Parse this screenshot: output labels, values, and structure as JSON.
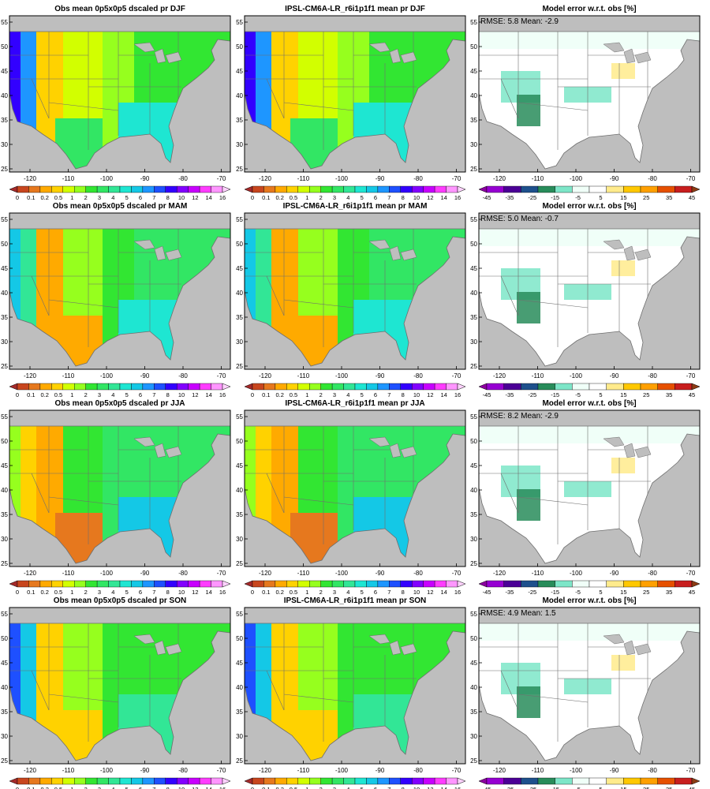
{
  "figure": {
    "lon_ticks": [
      "-120",
      "-110",
      "-100",
      "-90",
      "-80",
      "-70"
    ],
    "lat_ticks": [
      "25",
      "30",
      "35",
      "40",
      "45",
      "50",
      "55"
    ],
    "rows": [
      {
        "season": "DJF",
        "panels": [
          {
            "title": "Obs mean 0p5x0p5 dscaled pr DJF",
            "kind": "precip"
          },
          {
            "title": "IPSL-CM6A-LR_r6i1p1f1 mean pr DJF",
            "kind": "precip"
          },
          {
            "title": "Model error w.r.t. obs [%]",
            "kind": "error",
            "stats": "RMSE: 5.8  Mean: -2.9"
          }
        ]
      },
      {
        "season": "MAM",
        "panels": [
          {
            "title": "Obs mean 0p5x0p5 dscaled pr MAM",
            "kind": "precip"
          },
          {
            "title": "IPSL-CM6A-LR_r6i1p1f1 mean pr MAM",
            "kind": "precip"
          },
          {
            "title": "Model error w.r.t. obs [%]",
            "kind": "error",
            "stats": "RMSE: 5.0  Mean: -0.7"
          }
        ]
      },
      {
        "season": "JJA",
        "panels": [
          {
            "title": "Obs mean 0p5x0p5 dscaled pr JJA",
            "kind": "precip"
          },
          {
            "title": "IPSL-CM6A-LR_r6i1p1f1 mean pr JJA",
            "kind": "precip"
          },
          {
            "title": "Model error w.r.t. obs [%]",
            "kind": "error",
            "stats": "RMSE: 8.2  Mean: -2.9"
          }
        ]
      },
      {
        "season": "SON",
        "panels": [
          {
            "title": "Obs mean 0p5x0p5 dscaled pr SON",
            "kind": "precip"
          },
          {
            "title": "IPSL-CM6A-LR_r6i1p1f1 mean pr SON",
            "kind": "precip"
          },
          {
            "title": "Model error w.r.t. obs [%]",
            "kind": "error",
            "stats": "RMSE: 4.9  Mean: 1.5"
          }
        ]
      }
    ],
    "precip_colorbar": {
      "labels": [
        "0",
        "0.1",
        "0.2",
        "0.5",
        "1",
        "2",
        "3",
        "4",
        "5",
        "6",
        "7",
        "8",
        "10",
        "12",
        "14",
        "16"
      ],
      "colors": [
        "#a52a2a",
        "#c8461e",
        "#e6781e",
        "#ffaa00",
        "#ffd200",
        "#d2ff00",
        "#96ff1e",
        "#32e632",
        "#32e664",
        "#32e696",
        "#1ee6d2",
        "#14c8e6",
        "#1e96ff",
        "#1e50ff",
        "#3200ff",
        "#8200ff",
        "#c800ff",
        "#ff3cff",
        "#ff96ff",
        "#ffd2ff"
      ]
    },
    "error_colorbar": {
      "labels": [
        "-45",
        "-35",
        "-25",
        "-15",
        "-5",
        "5",
        "15",
        "25",
        "35",
        "45"
      ],
      "colors": [
        "#8c00a0",
        "#9600d2",
        "#4b0096",
        "#1e508c",
        "#288c5a",
        "#7de6c8",
        "#f0fff8",
        "#ffffff",
        "#ffeb8c",
        "#ffc800",
        "#ffa000",
        "#e65000",
        "#c81e1e",
        "#8c3c14"
      ]
    },
    "colors": {
      "land_mask": "#bebebe",
      "ocean": "#bebebe",
      "boundary": "#6e6e6e"
    }
  }
}
